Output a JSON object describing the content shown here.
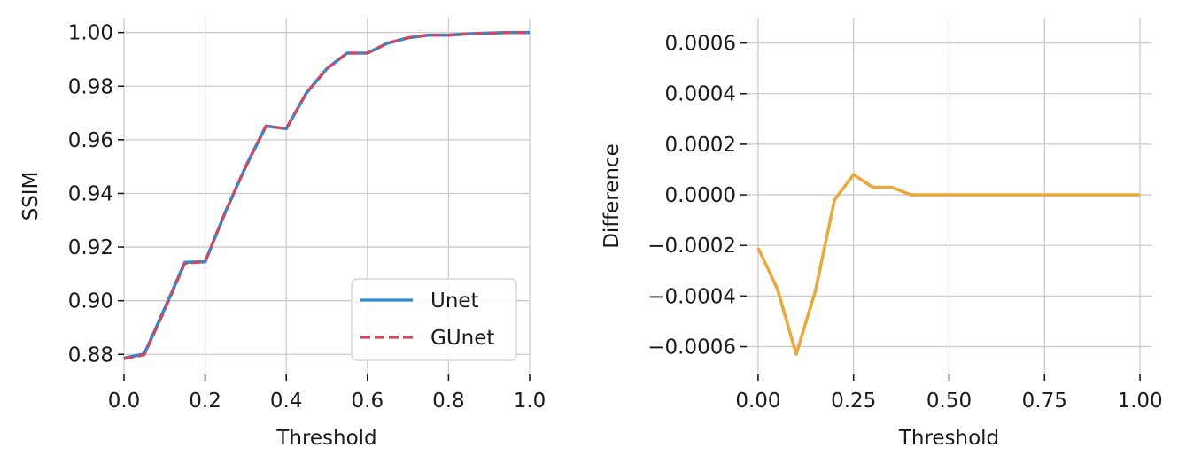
{
  "chart_data": [
    {
      "type": "line",
      "xlabel": "Threshold",
      "ylabel": "SSIM",
      "xlim": [
        0.0,
        1.0
      ],
      "ylim": [
        0.8725,
        1.0055
      ],
      "xticks": [
        0.0,
        0.2,
        0.4,
        0.6,
        0.8,
        1.0
      ],
      "xtick_labels": [
        "0.0",
        "0.2",
        "0.4",
        "0.6",
        "0.8",
        "1.0"
      ],
      "yticks": [
        0.88,
        0.9,
        0.92,
        0.94,
        0.96,
        0.98,
        1.0
      ],
      "ytick_labels": [
        "0.88",
        "0.90",
        "0.92",
        "0.94",
        "0.96",
        "0.98",
        "1.00"
      ],
      "grid": true,
      "legend_position": "bottom-right",
      "x": [
        0.0,
        0.05,
        0.1,
        0.15,
        0.2,
        0.25,
        0.3,
        0.35,
        0.4,
        0.45,
        0.5,
        0.55,
        0.6,
        0.65,
        0.7,
        0.75,
        0.8,
        0.85,
        0.9,
        0.95,
        1.0
      ],
      "series": [
        {
          "name": "Unet",
          "color": "#2b8cd1",
          "style": "solid",
          "values": [
            0.8786,
            0.8802,
            0.897,
            0.9143,
            0.9145,
            0.9331,
            0.95,
            0.9651,
            0.9641,
            0.9775,
            0.9865,
            0.9923,
            0.9923,
            0.996,
            0.998,
            0.999,
            0.999,
            0.9995,
            0.9998,
            1.0,
            1.0
          ]
        },
        {
          "name": "GUnet",
          "color": "#d1475f",
          "style": "dashed",
          "values": [
            0.8784,
            0.8798,
            0.8964,
            0.9139,
            0.9145,
            0.9332,
            0.95,
            0.9651,
            0.9641,
            0.9775,
            0.9865,
            0.9923,
            0.9923,
            0.996,
            0.998,
            0.999,
            0.999,
            0.9995,
            0.9998,
            1.0,
            1.0
          ]
        }
      ]
    },
    {
      "type": "line",
      "xlabel": "Threshold",
      "ylabel": "Difference",
      "xlim": [
        -0.03,
        1.03
      ],
      "ylim": [
        -0.00071,
        0.0007
      ],
      "xticks": [
        0.0,
        0.25,
        0.5,
        0.75,
        1.0
      ],
      "xtick_labels": [
        "0.00",
        "0.25",
        "0.50",
        "0.75",
        "1.00"
      ],
      "yticks": [
        -0.0006,
        -0.0004,
        -0.0002,
        0.0,
        0.0002,
        0.0004,
        0.0006
      ],
      "ytick_labels": [
        "−0.0006",
        "−0.0004",
        "−0.0002",
        "0.0000",
        "0.0002",
        "0.0004",
        "0.0006"
      ],
      "grid": true,
      "x": [
        0.0,
        0.05,
        0.1,
        0.15,
        0.2,
        0.25,
        0.3,
        0.35,
        0.4,
        0.45,
        0.5,
        0.55,
        0.6,
        0.65,
        0.7,
        0.75,
        0.8,
        0.85,
        0.9,
        0.95,
        1.0
      ],
      "series": [
        {
          "color": "#e8a93e",
          "style": "solid",
          "values": [
            -0.00021,
            -0.00037,
            -0.00063,
            -0.00038,
            -2e-05,
            8e-05,
            3e-05,
            3e-05,
            0.0,
            0.0,
            0.0,
            0.0,
            0.0,
            0.0,
            0.0,
            0.0,
            0.0,
            0.0,
            0.0,
            0.0,
            0.0
          ]
        }
      ]
    }
  ]
}
